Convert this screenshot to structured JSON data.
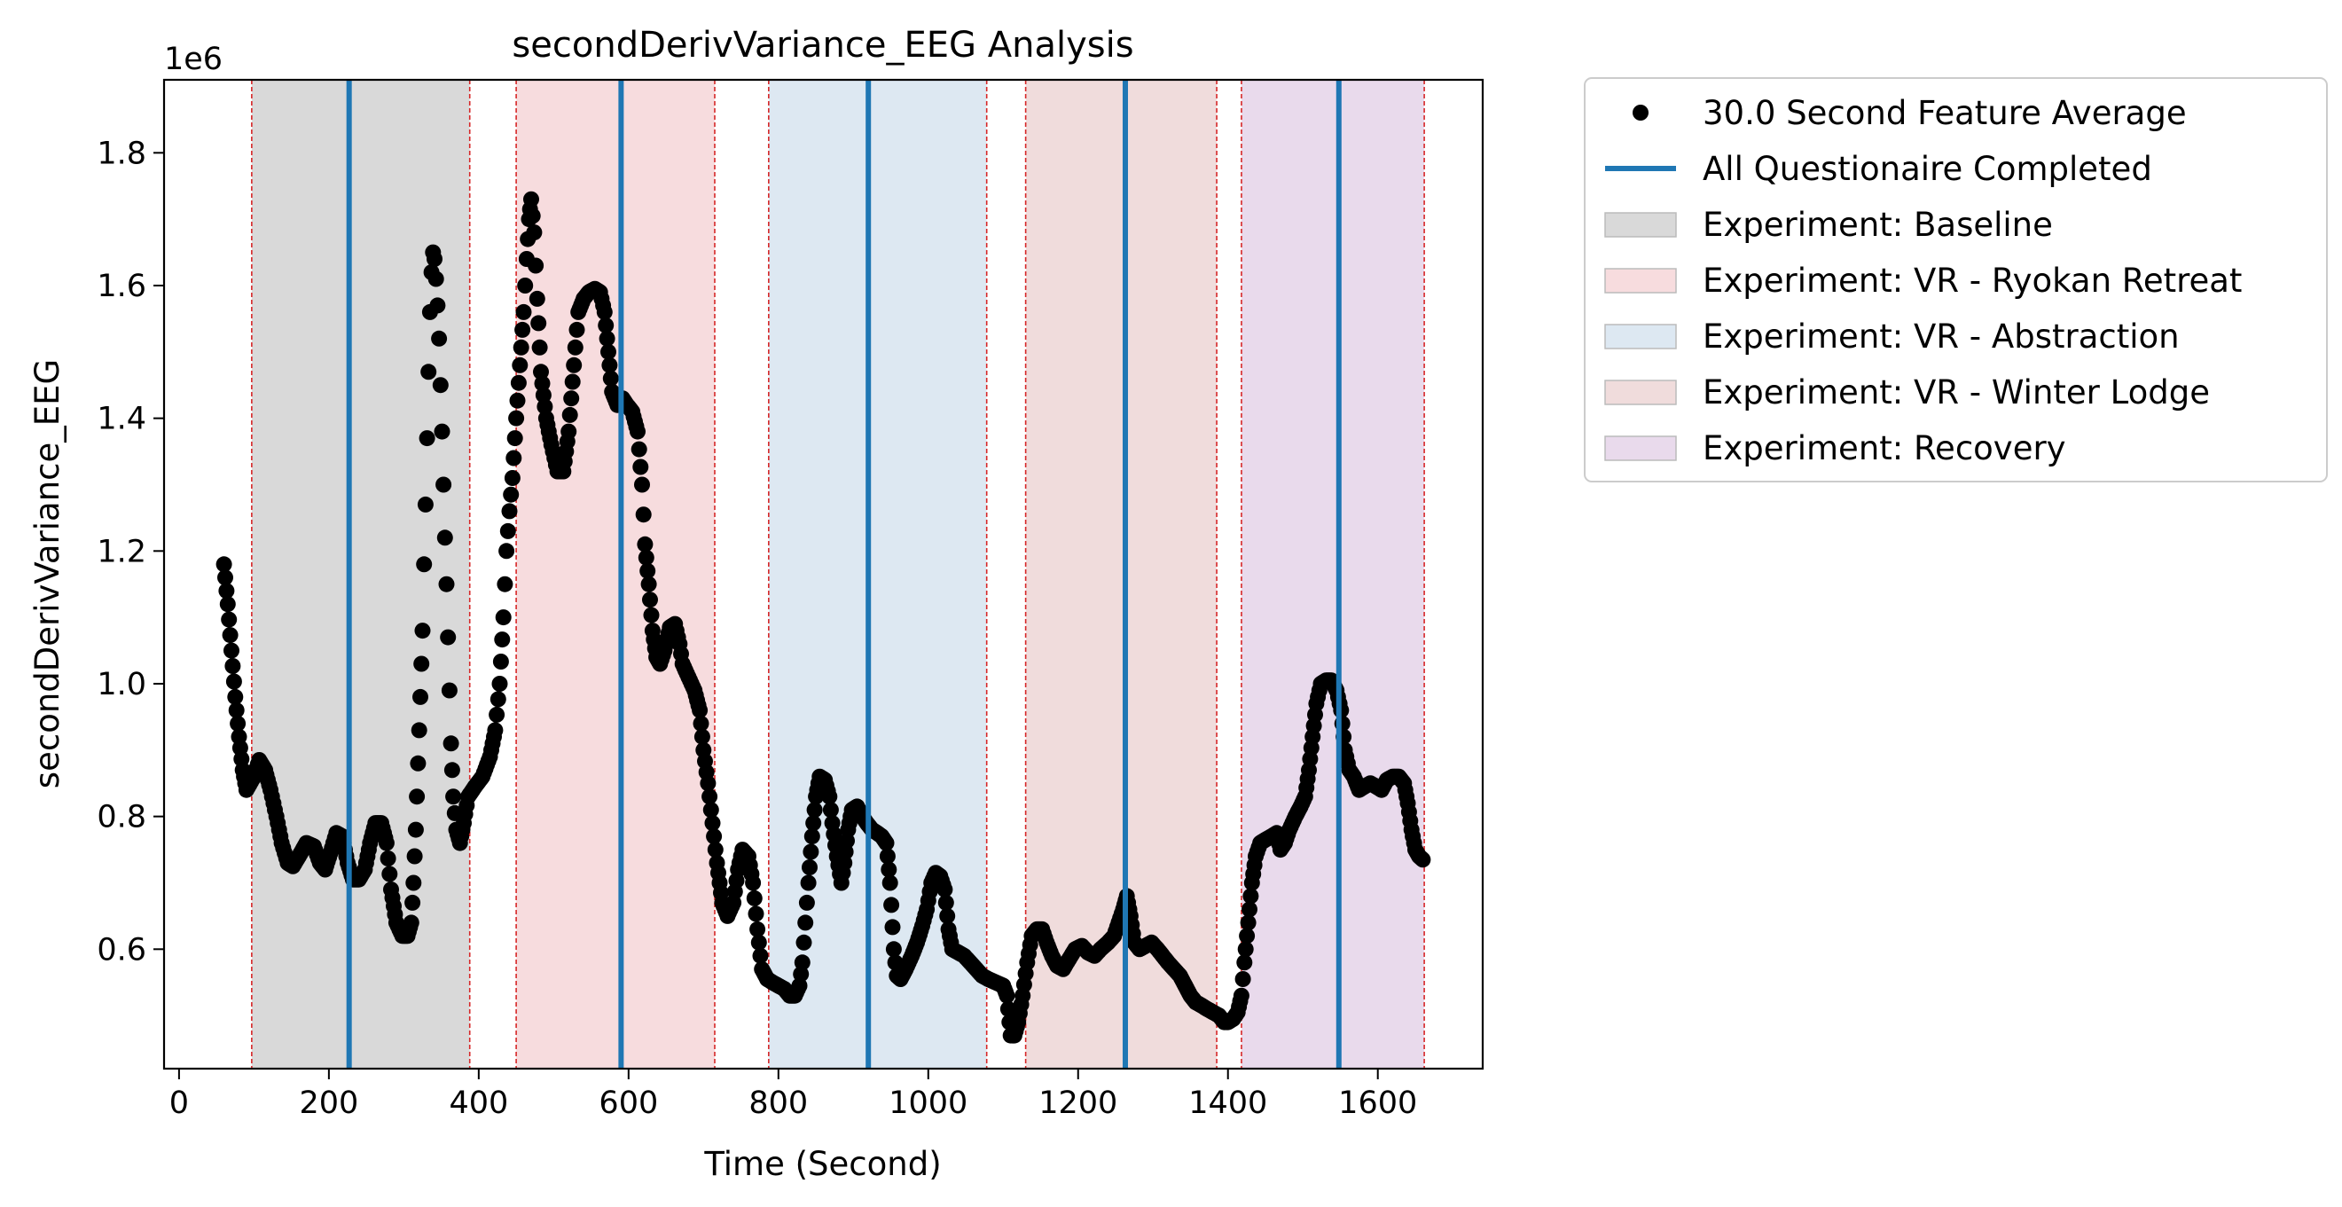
{
  "chart_data": {
    "type": "scatter",
    "title": "secondDerivVariance_EEG Analysis",
    "xlabel": "Time (Second)",
    "ylabel": "secondDerivVariance_EEG",
    "y_offset_label": "1e6",
    "xlim": [
      -20,
      1740
    ],
    "ylim": [
      420000,
      1910000
    ],
    "x_ticks": [
      0,
      200,
      400,
      600,
      800,
      1000,
      1200,
      1400,
      1600
    ],
    "y_ticks": [
      600000,
      800000,
      1000000,
      1200000,
      1400000,
      1600000,
      1800000
    ],
    "y_tick_labels": [
      "0.6",
      "0.8",
      "1.0",
      "1.2",
      "1.4",
      "1.6",
      "1.8"
    ],
    "grid": false,
    "legend_position": "outside-upper-right",
    "legend": [
      {
        "label": "30.0 Second Feature Average",
        "kind": "marker",
        "color": "#000000"
      },
      {
        "label": "All Questionaire Completed",
        "kind": "line",
        "color": "#1f77b4"
      },
      {
        "label": "Experiment: Baseline",
        "kind": "patch",
        "color": "#d9d9d9"
      },
      {
        "label": "Experiment: VR - Ryokan Retreat",
        "kind": "patch",
        "color": "#f7dcde"
      },
      {
        "label": "Experiment: VR - Abstraction",
        "kind": "patch",
        "color": "#dde8f2"
      },
      {
        "label": "Experiment: VR - Winter Lodge",
        "kind": "patch",
        "color": "#f0dcdc"
      },
      {
        "label": "Experiment: Recovery",
        "kind": "patch",
        "color": "#e9daec"
      }
    ],
    "regions": [
      {
        "name": "Experiment: Baseline",
        "start": 97,
        "end": 388,
        "color": "#d9d9d9"
      },
      {
        "name": "Experiment: VR - Ryokan Retreat",
        "start": 450,
        "end": 715,
        "color": "#f7dcde"
      },
      {
        "name": "Experiment: VR - Abstraction",
        "start": 787,
        "end": 1078,
        "color": "#dde8f2"
      },
      {
        "name": "Experiment: VR - Winter Lodge",
        "start": 1130,
        "end": 1385,
        "color": "#f0dcdc"
      },
      {
        "name": "Experiment: Recovery",
        "start": 1418,
        "end": 1662,
        "color": "#e9daec"
      }
    ],
    "questionnaire_lines": [
      227,
      590,
      920,
      1263,
      1548
    ],
    "series": [
      {
        "name": "30.0 Second Feature Average",
        "color": "#000000",
        "points": [
          [
            60,
            1180000
          ],
          [
            65,
            1120000
          ],
          [
            70,
            1050000
          ],
          [
            75,
            980000
          ],
          [
            80,
            920000
          ],
          [
            85,
            870000
          ],
          [
            90,
            840000
          ],
          [
            100,
            860000
          ],
          [
            107,
            885000
          ],
          [
            115,
            870000
          ],
          [
            122,
            840000
          ],
          [
            130,
            800000
          ],
          [
            137,
            760000
          ],
          [
            145,
            730000
          ],
          [
            152,
            725000
          ],
          [
            160,
            740000
          ],
          [
            170,
            760000
          ],
          [
            180,
            755000
          ],
          [
            188,
            730000
          ],
          [
            195,
            720000
          ],
          [
            202,
            745000
          ],
          [
            210,
            775000
          ],
          [
            218,
            770000
          ],
          [
            225,
            730000
          ],
          [
            232,
            705000
          ],
          [
            240,
            705000
          ],
          [
            248,
            720000
          ],
          [
            255,
            760000
          ],
          [
            262,
            790000
          ],
          [
            270,
            790000
          ],
          [
            277,
            760000
          ],
          [
            283,
            690000
          ],
          [
            290,
            640000
          ],
          [
            298,
            620000
          ],
          [
            305,
            620000
          ],
          [
            310,
            640000
          ],
          [
            313,
            700000
          ],
          [
            316,
            780000
          ],
          [
            319,
            880000
          ],
          [
            322,
            980000
          ],
          [
            325,
            1080000
          ],
          [
            327,
            1180000
          ],
          [
            329,
            1270000
          ],
          [
            331,
            1370000
          ],
          [
            333,
            1470000
          ],
          [
            335,
            1560000
          ],
          [
            337,
            1620000
          ],
          [
            339,
            1650000
          ],
          [
            341,
            1640000
          ],
          [
            343,
            1610000
          ],
          [
            345,
            1570000
          ],
          [
            347,
            1520000
          ],
          [
            349,
            1450000
          ],
          [
            351,
            1380000
          ],
          [
            353,
            1300000
          ],
          [
            355,
            1220000
          ],
          [
            357,
            1150000
          ],
          [
            359,
            1070000
          ],
          [
            361,
            990000
          ],
          [
            363,
            910000
          ],
          [
            366,
            830000
          ],
          [
            370,
            780000
          ],
          [
            375,
            760000
          ],
          [
            380,
            790000
          ],
          [
            386,
            830000
          ],
          [
            395,
            845000
          ],
          [
            405,
            860000
          ],
          [
            415,
            890000
          ],
          [
            422,
            930000
          ],
          [
            428,
            1000000
          ],
          [
            433,
            1100000
          ],
          [
            437,
            1200000
          ],
          [
            441,
            1260000
          ],
          [
            445,
            1310000
          ],
          [
            450,
            1400000
          ],
          [
            455,
            1480000
          ],
          [
            460,
            1560000
          ],
          [
            464,
            1640000
          ],
          [
            467,
            1700000
          ],
          [
            470,
            1730000
          ],
          [
            474,
            1680000
          ],
          [
            478,
            1580000
          ],
          [
            483,
            1470000
          ],
          [
            490,
            1400000
          ],
          [
            497,
            1360000
          ],
          [
            505,
            1320000
          ],
          [
            513,
            1320000
          ],
          [
            520,
            1380000
          ],
          [
            527,
            1480000
          ],
          [
            533,
            1560000
          ],
          [
            540,
            1580000
          ],
          [
            547,
            1590000
          ],
          [
            555,
            1595000
          ],
          [
            562,
            1590000
          ],
          [
            568,
            1560000
          ],
          [
            573,
            1500000
          ],
          [
            578,
            1440000
          ],
          [
            585,
            1420000
          ],
          [
            592,
            1430000
          ],
          [
            598,
            1420000
          ],
          [
            605,
            1410000
          ],
          [
            612,
            1380000
          ],
          [
            618,
            1300000
          ],
          [
            622,
            1210000
          ],
          [
            627,
            1150000
          ],
          [
            632,
            1080000
          ],
          [
            637,
            1040000
          ],
          [
            642,
            1030000
          ],
          [
            648,
            1050000
          ],
          [
            655,
            1085000
          ],
          [
            662,
            1090000
          ],
          [
            668,
            1060000
          ],
          [
            672,
            1030000
          ],
          [
            680,
            1010000
          ],
          [
            688,
            990000
          ],
          [
            695,
            960000
          ],
          [
            700,
            900000
          ],
          [
            706,
            850000
          ],
          [
            712,
            790000
          ],
          [
            718,
            730000
          ],
          [
            725,
            670000
          ],
          [
            732,
            650000
          ],
          [
            740,
            670000
          ],
          [
            746,
            720000
          ],
          [
            752,
            750000
          ],
          [
            760,
            740000
          ],
          [
            766,
            700000
          ],
          [
            772,
            630000
          ],
          [
            778,
            570000
          ],
          [
            785,
            555000
          ],
          [
            792,
            550000
          ],
          [
            800,
            545000
          ],
          [
            808,
            540000
          ],
          [
            815,
            530000
          ],
          [
            822,
            530000
          ],
          [
            828,
            545000
          ],
          [
            832,
            580000
          ],
          [
            836,
            640000
          ],
          [
            840,
            700000
          ],
          [
            845,
            770000
          ],
          [
            850,
            830000
          ],
          [
            855,
            860000
          ],
          [
            862,
            855000
          ],
          [
            868,
            830000
          ],
          [
            872,
            790000
          ],
          [
            878,
            740000
          ],
          [
            884,
            700000
          ],
          [
            888,
            730000
          ],
          [
            893,
            780000
          ],
          [
            898,
            810000
          ],
          [
            905,
            815000
          ],
          [
            912,
            800000
          ],
          [
            918,
            790000
          ],
          [
            925,
            780000
          ],
          [
            932,
            775000
          ],
          [
            938,
            770000
          ],
          [
            944,
            760000
          ],
          [
            949,
            700000
          ],
          [
            954,
            600000
          ],
          [
            958,
            560000
          ],
          [
            963,
            555000
          ],
          [
            970,
            570000
          ],
          [
            978,
            590000
          ],
          [
            985,
            610000
          ],
          [
            992,
            635000
          ],
          [
            998,
            660000
          ],
          [
            1004,
            700000
          ],
          [
            1010,
            715000
          ],
          [
            1016,
            710000
          ],
          [
            1022,
            690000
          ],
          [
            1027,
            630000
          ],
          [
            1032,
            600000
          ],
          [
            1040,
            595000
          ],
          [
            1048,
            590000
          ],
          [
            1056,
            580000
          ],
          [
            1064,
            570000
          ],
          [
            1072,
            560000
          ],
          [
            1080,
            555000
          ],
          [
            1090,
            550000
          ],
          [
            1100,
            545000
          ],
          [
            1105,
            530000
          ],
          [
            1110,
            470000
          ],
          [
            1115,
            470000
          ],
          [
            1120,
            490000
          ],
          [
            1126,
            530000
          ],
          [
            1132,
            580000
          ],
          [
            1138,
            620000
          ],
          [
            1145,
            630000
          ],
          [
            1152,
            630000
          ],
          [
            1158,
            610000
          ],
          [
            1165,
            590000
          ],
          [
            1172,
            575000
          ],
          [
            1180,
            570000
          ],
          [
            1188,
            585000
          ],
          [
            1196,
            600000
          ],
          [
            1205,
            605000
          ],
          [
            1213,
            595000
          ],
          [
            1222,
            590000
          ],
          [
            1230,
            600000
          ],
          [
            1240,
            610000
          ],
          [
            1248,
            620000
          ],
          [
            1254,
            640000
          ],
          [
            1260,
            660000
          ],
          [
            1265,
            680000
          ],
          [
            1270,
            650000
          ],
          [
            1275,
            610000
          ],
          [
            1282,
            600000
          ],
          [
            1290,
            605000
          ],
          [
            1298,
            610000
          ],
          [
            1306,
            600000
          ],
          [
            1313,
            590000
          ],
          [
            1320,
            580000
          ],
          [
            1328,
            570000
          ],
          [
            1336,
            560000
          ],
          [
            1343,
            545000
          ],
          [
            1350,
            530000
          ],
          [
            1357,
            520000
          ],
          [
            1365,
            515000
          ],
          [
            1372,
            510000
          ],
          [
            1380,
            505000
          ],
          [
            1388,
            500000
          ],
          [
            1395,
            490000
          ],
          [
            1400,
            490000
          ],
          [
            1407,
            495000
          ],
          [
            1413,
            505000
          ],
          [
            1418,
            530000
          ],
          [
            1422,
            580000
          ],
          [
            1427,
            640000
          ],
          [
            1432,
            700000
          ],
          [
            1437,
            740000
          ],
          [
            1443,
            760000
          ],
          [
            1450,
            765000
          ],
          [
            1458,
            770000
          ],
          [
            1465,
            775000
          ],
          [
            1470,
            750000
          ],
          [
            1476,
            760000
          ],
          [
            1482,
            780000
          ],
          [
            1490,
            800000
          ],
          [
            1497,
            815000
          ],
          [
            1503,
            830000
          ],
          [
            1508,
            870000
          ],
          [
            1513,
            920000
          ],
          [
            1518,
            970000
          ],
          [
            1524,
            1000000
          ],
          [
            1531,
            1005000
          ],
          [
            1538,
            1005000
          ],
          [
            1545,
            990000
          ],
          [
            1551,
            960000
          ],
          [
            1556,
            900000
          ],
          [
            1562,
            870000
          ],
          [
            1568,
            860000
          ],
          [
            1575,
            840000
          ],
          [
            1582,
            845000
          ],
          [
            1590,
            850000
          ],
          [
            1598,
            845000
          ],
          [
            1605,
            840000
          ],
          [
            1612,
            855000
          ],
          [
            1620,
            860000
          ],
          [
            1628,
            860000
          ],
          [
            1635,
            850000
          ],
          [
            1640,
            820000
          ],
          [
            1645,
            780000
          ],
          [
            1650,
            750000
          ],
          [
            1655,
            740000
          ],
          [
            1660,
            735000
          ]
        ]
      }
    ]
  }
}
